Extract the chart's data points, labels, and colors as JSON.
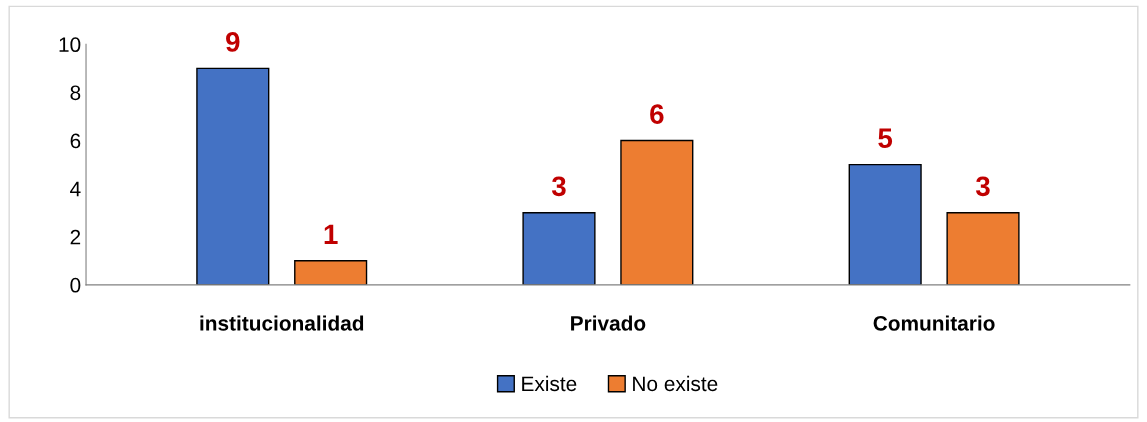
{
  "chart_data": {
    "type": "bar",
    "categories": [
      "institucionalidad",
      "Privado",
      "Comunitario"
    ],
    "series": [
      {
        "name": "Existe",
        "color": "#4472c4",
        "values": [
          9,
          3,
          5
        ]
      },
      {
        "name": "No existe",
        "color": "#ed7d31",
        "values": [
          1,
          6,
          3
        ]
      }
    ],
    "ylim": [
      0,
      10
    ],
    "yticks": [
      0,
      2,
      4,
      6,
      8,
      10
    ],
    "grid": false,
    "legend": "bottom",
    "data_labels": true
  }
}
